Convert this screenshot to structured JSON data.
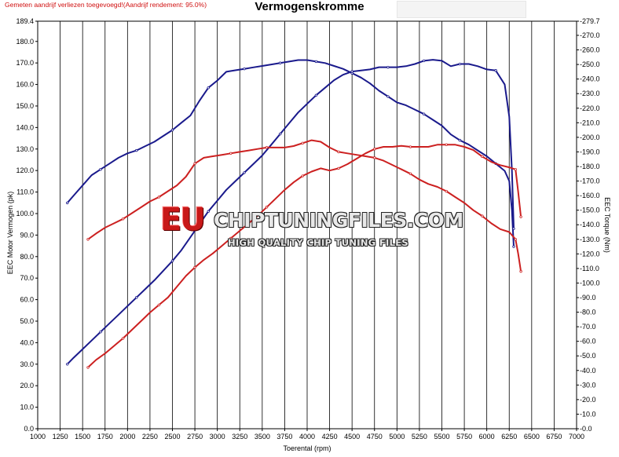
{
  "header": {
    "note": "Gemeten aandrijf verliezen toegevoegd!(Aandrijf rendement: 95.0%)"
  },
  "watermark": {
    "brand": "EU",
    "name": "CHIPTUNINGFILES.COM",
    "tagline": "HIGH QUALITY CHIP TUNING FILES"
  },
  "chart_data": {
    "type": "line",
    "title": "Vermogenskromme",
    "xlabel": "Toerental (rpm)",
    "ylabel": "EEC Motor Vermogen (pk)",
    "y2label": "EEC Torque (Nm)",
    "xlim": [
      1000,
      7000
    ],
    "ylim": [
      0,
      189.4
    ],
    "y2lim": [
      0,
      279.7
    ],
    "grid": true,
    "x_ticks": [
      "1000",
      "1250",
      "1500",
      "1750",
      "2000",
      "2250",
      "2500",
      "2750",
      "3000",
      "3250",
      "3500",
      "3750",
      "4000",
      "4250",
      "4500",
      "4750",
      "5000",
      "5250",
      "5500",
      "5750",
      "6000",
      "6250",
      "6500",
      "6750",
      "7000"
    ],
    "y_ticks": [
      "0.0",
      "10.0",
      "20.0",
      "30.0",
      "40.0",
      "50.0",
      "60.0",
      "70.0",
      "80.0",
      "90.0",
      "100.0",
      "110.0",
      "120.0",
      "130.0",
      "140.0",
      "150.0",
      "160.0",
      "170.0",
      "180.0",
      "189.4"
    ],
    "y2_ticks": [
      "0.0",
      "10.0",
      "20.0",
      "30.0",
      "40.0",
      "50.0",
      "60.0",
      "70.0",
      "80.0",
      "90.0",
      "100.0",
      "110.0",
      "120.0",
      "130.0",
      "140.0",
      "150.0",
      "160.0",
      "170.0",
      "180.0",
      "190.0",
      "200.0",
      "210.0",
      "220.0",
      "230.0",
      "240.0",
      "250.0",
      "260.0",
      "270.0",
      "279.7"
    ],
    "colors": {
      "tuned": "#1a1a8c",
      "stock": "#cc2020"
    },
    "series": [
      {
        "color": "#1a1a8c",
        "axis": "right",
        "x": [
          1330,
          1400,
          1500,
          1600,
          1700,
          1800,
          1900,
          2000,
          2100,
          2200,
          2300,
          2400,
          2500,
          2600,
          2700,
          2800,
          2900,
          3000,
          3100,
          3200,
          3300,
          3400,
          3500,
          3600,
          3700,
          3800,
          3900,
          4000,
          4100,
          4200,
          4300,
          4400,
          4500,
          4600,
          4700,
          4800,
          4900,
          5000,
          5100,
          5200,
          5300,
          5400,
          5500,
          5600,
          5700,
          5800,
          5900,
          6000,
          6100,
          6200,
          6250,
          6280,
          6300
        ],
        "values": [
          155,
          160,
          167,
          174,
          178,
          182,
          186,
          189,
          191,
          194,
          197,
          201,
          205,
          210,
          215,
          225,
          234,
          239,
          245,
          246,
          247,
          248,
          249,
          250,
          251,
          252,
          253,
          253,
          252,
          251,
          249,
          247,
          244,
          241,
          237,
          232,
          228,
          224,
          222,
          219,
          216,
          212,
          208,
          202,
          198,
          195,
          191,
          187,
          182,
          177,
          170,
          150,
          125
        ]
      },
      {
        "color": "#1a1a8c",
        "axis": "left",
        "x": [
          1330,
          1400,
          1500,
          1600,
          1700,
          1800,
          1900,
          2000,
          2100,
          2200,
          2300,
          2400,
          2500,
          2600,
          2700,
          2800,
          2900,
          3000,
          3100,
          3200,
          3300,
          3400,
          3500,
          3600,
          3700,
          3800,
          3900,
          4000,
          4100,
          4200,
          4300,
          4400,
          4500,
          4600,
          4700,
          4800,
          4900,
          5000,
          5100,
          5200,
          5300,
          5400,
          5500,
          5600,
          5700,
          5800,
          5900,
          6000,
          6100,
          6200,
          6250,
          6280,
          6300
        ],
        "values": [
          30,
          33,
          37,
          41,
          45,
          49,
          53,
          57,
          61,
          65,
          69,
          73.5,
          78,
          83,
          89,
          95,
          101,
          106,
          111,
          115,
          119,
          123,
          127,
          132,
          137,
          142,
          147,
          151,
          155,
          158.5,
          162,
          164.5,
          166,
          166.5,
          167,
          168,
          168,
          168,
          168.5,
          169.5,
          171,
          171.5,
          171,
          168.5,
          169.5,
          169.5,
          168.5,
          167,
          166.5,
          160,
          145,
          120,
          93
        ]
      },
      {
        "color": "#cc2020",
        "axis": "right",
        "x": [
          1560,
          1650,
          1750,
          1850,
          1950,
          2050,
          2150,
          2250,
          2350,
          2450,
          2550,
          2650,
          2750,
          2850,
          2950,
          3050,
          3150,
          3250,
          3350,
          3450,
          3550,
          3650,
          3750,
          3850,
          3950,
          4050,
          4150,
          4250,
          4350,
          4450,
          4550,
          4650,
          4750,
          4850,
          4950,
          5050,
          5150,
          5250,
          5350,
          5450,
          5550,
          5650,
          5750,
          5850,
          5950,
          6050,
          6150,
          6250,
          6320,
          6350,
          6380
        ],
        "values": [
          130,
          134,
          138,
          141,
          144,
          148,
          152,
          156,
          159,
          163,
          167,
          173,
          182,
          186,
          187,
          188,
          189,
          190,
          191,
          192,
          193,
          193,
          193,
          194,
          196,
          198,
          197,
          193,
          190,
          189,
          188,
          187,
          186,
          184,
          181,
          178,
          175,
          171,
          168,
          166,
          163,
          159,
          155,
          150,
          146,
          141,
          137,
          135,
          130,
          120,
          108
        ]
      },
      {
        "color": "#cc2020",
        "axis": "left",
        "x": [
          1560,
          1650,
          1750,
          1850,
          1950,
          2050,
          2150,
          2250,
          2350,
          2450,
          2550,
          2650,
          2750,
          2850,
          2950,
          3050,
          3150,
          3250,
          3350,
          3450,
          3550,
          3650,
          3750,
          3850,
          3950,
          4050,
          4150,
          4250,
          4350,
          4450,
          4550,
          4650,
          4750,
          4850,
          4950,
          5050,
          5150,
          5250,
          5350,
          5450,
          5550,
          5650,
          5750,
          5850,
          5950,
          6050,
          6150,
          6250,
          6320,
          6350,
          6380
        ],
        "values": [
          28.5,
          32,
          35,
          38.5,
          42,
          46,
          50,
          54,
          57.5,
          61,
          66,
          71,
          75,
          78.5,
          81.5,
          85,
          88.5,
          92,
          95.5,
          99,
          103,
          107,
          111,
          114.5,
          117.5,
          119.5,
          121,
          120,
          121,
          123,
          125.5,
          128,
          130,
          131,
          131,
          131.5,
          131,
          131,
          131,
          132,
          132,
          132,
          131,
          129.5,
          126.5,
          124,
          122.5,
          121.5,
          120.5,
          110,
          98.5
        ]
      }
    ]
  }
}
